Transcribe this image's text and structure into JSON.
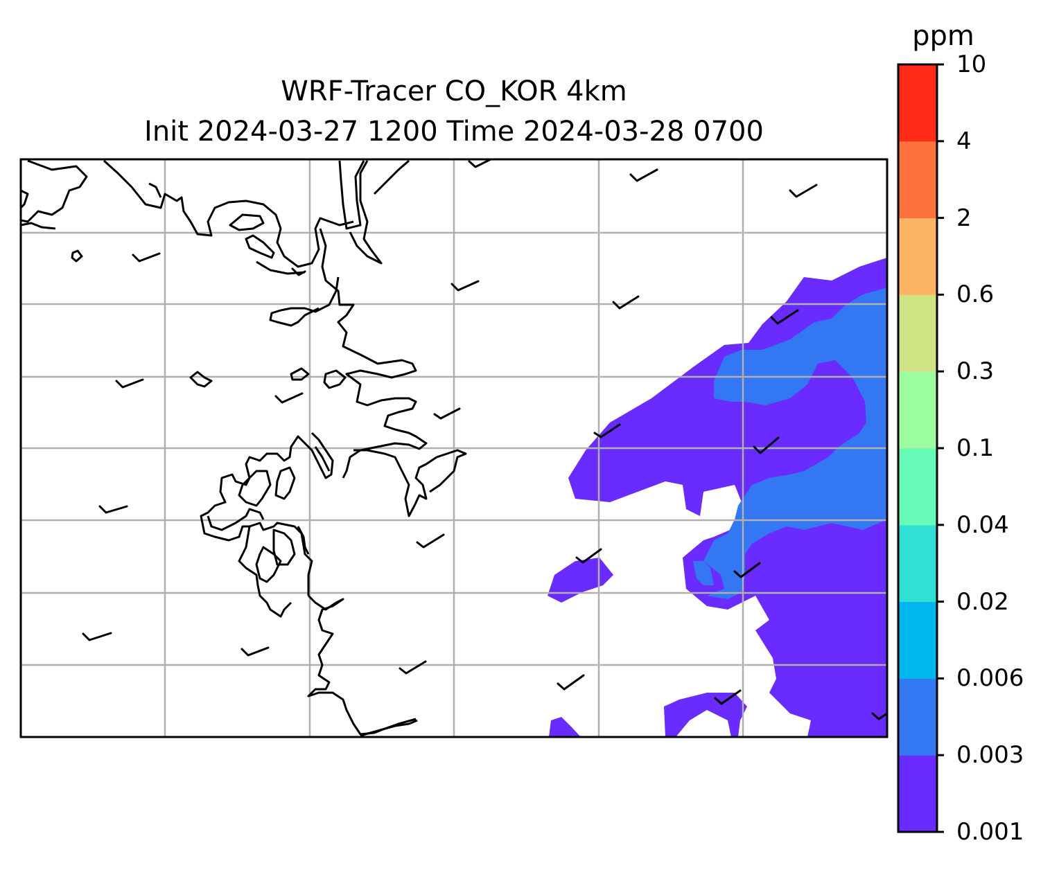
{
  "title": {
    "line1": "WRF-Tracer CO_KOR 4km",
    "line2": "Init 2024-03-27 1200 Time 2024-03-28 0700"
  },
  "colorbar": {
    "unit": "ppm",
    "levels": [
      "0.001",
      "0.003",
      "0.006",
      "0.02",
      "0.04",
      "0.1",
      "0.3",
      "0.6",
      "2",
      "4",
      "10"
    ],
    "colors": [
      "#6a2bff",
      "#3378f2",
      "#00b6ef",
      "#30e0d4",
      "#66fcb8",
      "#9cfd9f",
      "#cfe385",
      "#fdb565",
      "#fe733d",
      "#fe2b18"
    ]
  },
  "map": {
    "plume_colors": {
      "low": "#6a2bff",
      "mid": "#3378f2"
    },
    "gridline_color": "#b0b0b0",
    "coastline_color": "#000000",
    "wind_barbs": 29
  }
}
